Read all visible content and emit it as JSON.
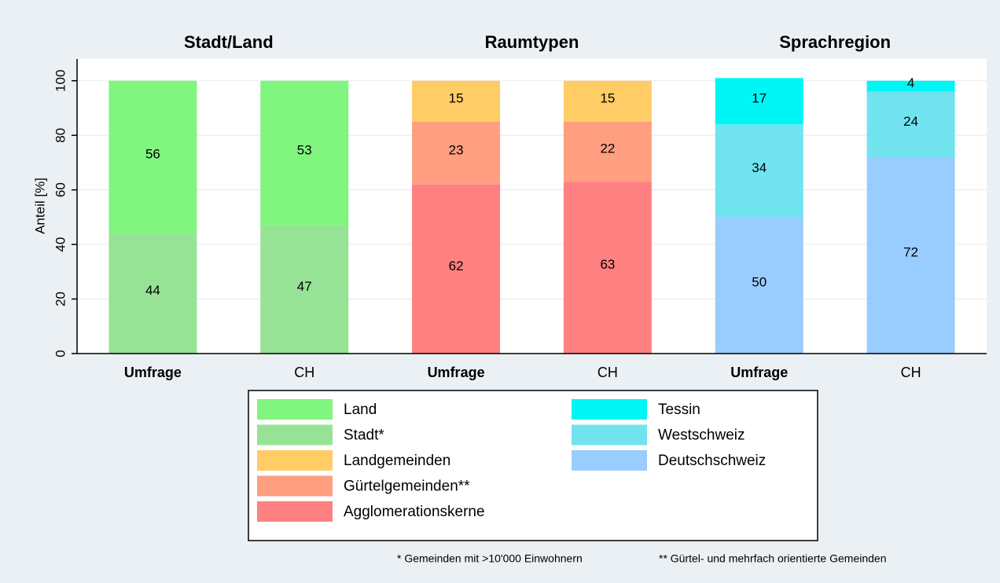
{
  "chart_data": {
    "type": "stacked_bar",
    "group_titles": [
      "Stadt/Land",
      "Raumtypen",
      "Sprachregion"
    ],
    "categories": [
      "Umfrage",
      "CH",
      "Umfrage",
      "CH",
      "Umfrage",
      "CH"
    ],
    "ylabel": "Anteil [%]",
    "ylim": [
      0,
      108
    ],
    "yticks": [
      0,
      20,
      40,
      60,
      80,
      100
    ],
    "grid": true,
    "series": [
      {
        "name": "Land",
        "color": "#80f580",
        "values": [
          56,
          53,
          null,
          null,
          null,
          null
        ]
      },
      {
        "name": "Stadt*",
        "color": "#96e396",
        "values": [
          44,
          47,
          null,
          null,
          null,
          null
        ]
      },
      {
        "name": "Landgemeinden",
        "color": "#ffcc66",
        "values": [
          null,
          null,
          15,
          15,
          null,
          null
        ]
      },
      {
        "name": "Gürtelgemeinden**",
        "color": "#ff9e80",
        "values": [
          null,
          null,
          23,
          22,
          null,
          null
        ]
      },
      {
        "name": "Agglomerationskerne",
        "color": "#ff8080",
        "values": [
          null,
          null,
          62,
          63,
          null,
          null
        ]
      },
      {
        "name": "Tessin",
        "color": "#00f5f5",
        "values": [
          null,
          null,
          null,
          null,
          17,
          4
        ]
      },
      {
        "name": "Westschweiz",
        "color": "#70e3ef",
        "values": [
          null,
          null,
          null,
          null,
          34,
          24
        ]
      },
      {
        "name": "Deutschschweiz",
        "color": "#99ccff",
        "values": [
          null,
          null,
          null,
          null,
          50,
          72
        ]
      }
    ],
    "notes": [
      "* Gemeinden mit >10'000 Einwohnern",
      "** Gürtel- und mehrfach orientierte Gemeinden"
    ]
  }
}
